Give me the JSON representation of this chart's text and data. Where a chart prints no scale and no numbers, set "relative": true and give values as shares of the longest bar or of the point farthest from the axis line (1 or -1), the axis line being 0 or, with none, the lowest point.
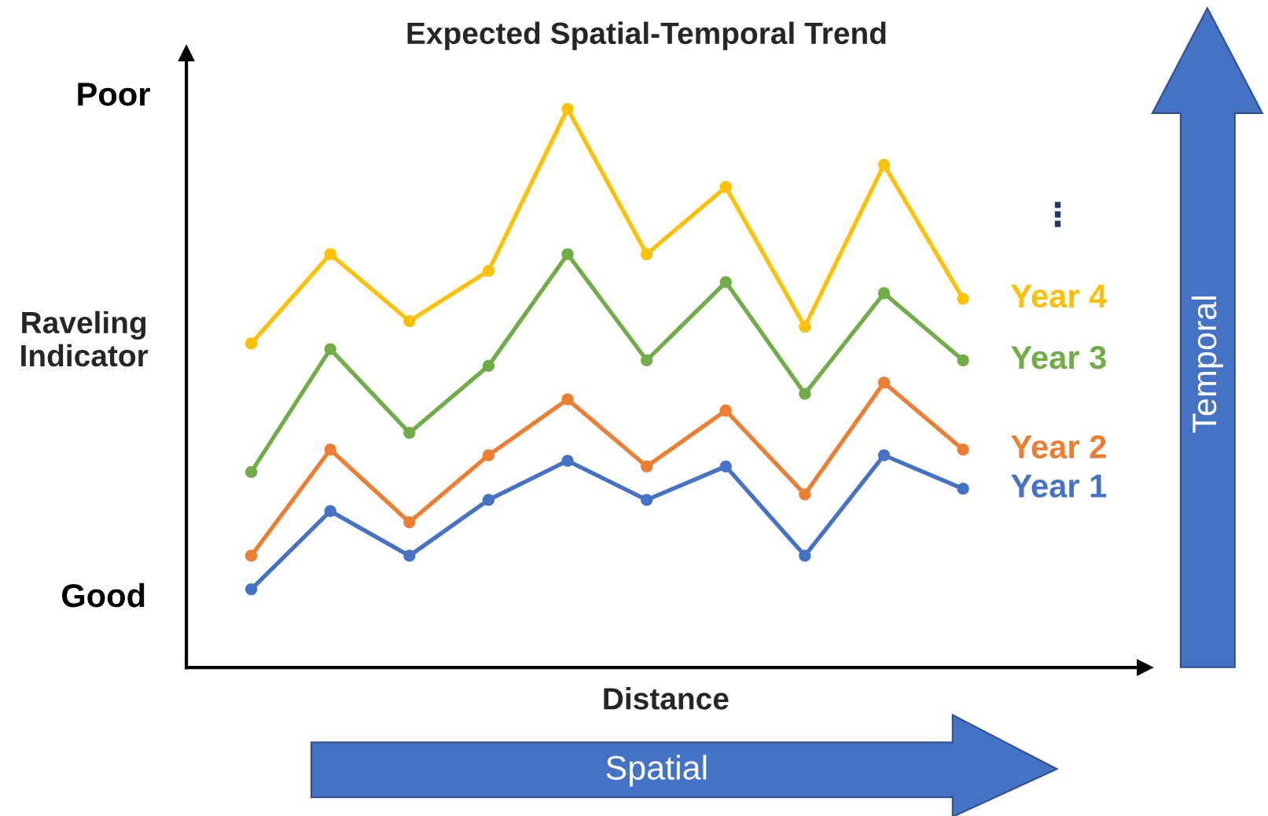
{
  "chart_data": {
    "type": "line",
    "title": "Expected Spatial-Temporal Trend",
    "xlabel": "Distance",
    "ylabel": "Raveling\nIndicator",
    "relative": true,
    "legend": false,
    "marker": "circle",
    "line_style": "solid",
    "categories": [
      null,
      null,
      null,
      null,
      null,
      null,
      null,
      null,
      null,
      null
    ],
    "series": [
      {
        "name": "Year 1",
        "color": "#4472c4",
        "values": [
          0.14,
          0.28,
          0.2,
          0.3,
          0.37,
          0.3,
          0.36,
          0.2,
          0.38,
          0.32
        ]
      },
      {
        "name": "Year 2",
        "color": "#ed7d31",
        "values": [
          0.2,
          0.39,
          0.26,
          0.38,
          0.48,
          0.36,
          0.46,
          0.31,
          0.51,
          0.39
        ]
      },
      {
        "name": "Year 3",
        "color": "#70ad47",
        "values": [
          0.35,
          0.57,
          0.42,
          0.54,
          0.74,
          0.55,
          0.69,
          0.49,
          0.67,
          0.55
        ]
      },
      {
        "name": "Year 4",
        "color": "#ffc000",
        "values": [
          0.58,
          0.74,
          0.62,
          0.71,
          1,
          0.74,
          0.86,
          0.61,
          0.9,
          0.66
        ]
      }
    ],
    "annotations": [
      "Poor",
      "Good",
      "⋮",
      "Spatial",
      "Temporal"
    ]
  }
}
